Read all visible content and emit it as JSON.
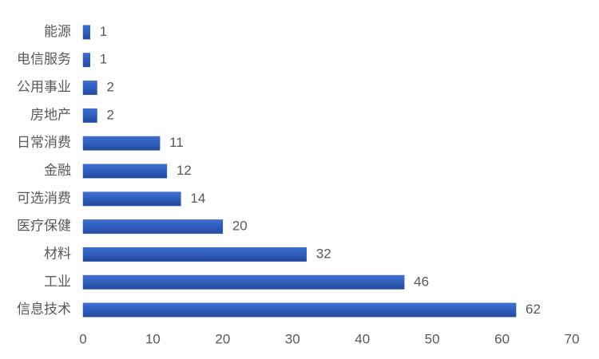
{
  "chart_data": {
    "type": "bar",
    "orientation": "horizontal",
    "categories": [
      "能源",
      "电信服务",
      "公用事业",
      "房地产",
      "日常消费",
      "金融",
      "可选消费",
      "医疗保健",
      "材料",
      "工业",
      "信息技术"
    ],
    "values": [
      1,
      1,
      2,
      2,
      11,
      12,
      14,
      20,
      32,
      46,
      62
    ],
    "color": "#2f5dbd",
    "xlim": [
      0,
      70
    ],
    "xticks": [
      0,
      10,
      20,
      30,
      40,
      50,
      60,
      70
    ],
    "grid": false
  }
}
